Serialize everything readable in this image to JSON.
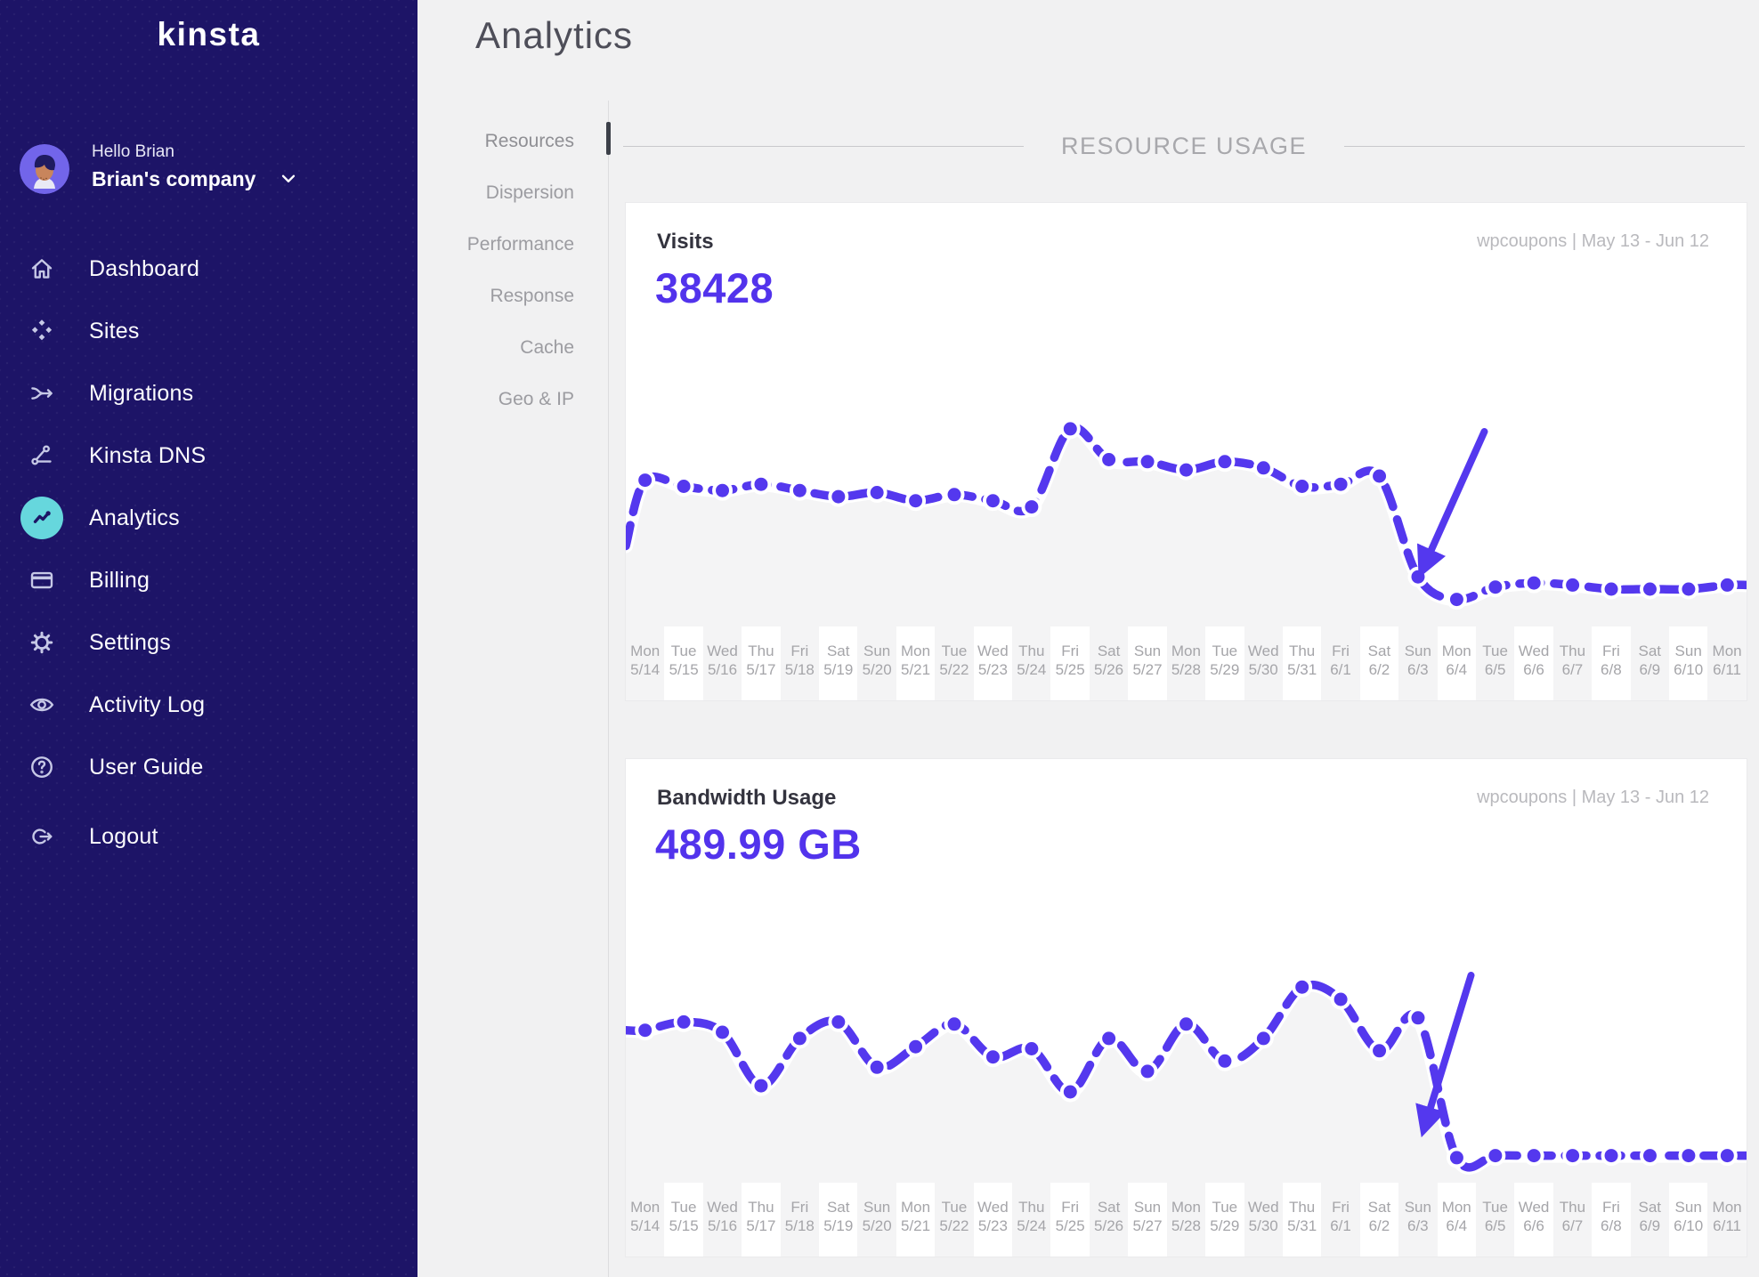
{
  "colors": {
    "sidebar_bg": "#1d1467",
    "accent_purple": "#5233ec",
    "active_teal": "#66d7dd",
    "chart_fill": "#f4f4f5",
    "muted_text": "#9c9ca1",
    "page_bg": "#f1f1f2"
  },
  "sidebar": {
    "logo": "kinsta",
    "user": {
      "greeting": "Hello Brian",
      "company": "Brian's company"
    },
    "items": [
      {
        "label": "Dashboard",
        "icon": "home-icon",
        "active": false
      },
      {
        "label": "Sites",
        "icon": "sites-icon",
        "active": false
      },
      {
        "label": "Migrations",
        "icon": "migrations-icon",
        "active": false
      },
      {
        "label": "Kinsta DNS",
        "icon": "dns-icon",
        "active": false
      },
      {
        "label": "Analytics",
        "icon": "analytics-icon",
        "active": true
      },
      {
        "label": "Billing",
        "icon": "billing-icon",
        "active": false
      },
      {
        "label": "Settings",
        "icon": "gear-icon",
        "active": false
      },
      {
        "label": "Activity Log",
        "icon": "eye-icon",
        "active": false
      },
      {
        "label": "User Guide",
        "icon": "question-icon",
        "active": false
      },
      {
        "label": "Logout",
        "icon": "logout-icon",
        "active": false
      }
    ]
  },
  "header": {
    "title": "Analytics"
  },
  "subnav": {
    "items": [
      {
        "label": "Resources",
        "active": true
      },
      {
        "label": "Dispersion",
        "active": false
      },
      {
        "label": "Performance",
        "active": false
      },
      {
        "label": "Response",
        "active": false
      },
      {
        "label": "Cache",
        "active": false
      },
      {
        "label": "Geo & IP",
        "active": false
      }
    ]
  },
  "section": {
    "title": "RESOURCE USAGE"
  },
  "chart_data": [
    {
      "type": "line",
      "title": "Visits",
      "total": "38428",
      "site": "wpcoupons",
      "date_range": "May 13 - Jun 12",
      "meta": "wpcoupons | May 13 - Jun 12",
      "x_days": [
        "Mon",
        "Tue",
        "Wed",
        "Thu",
        "Fri",
        "Sat",
        "Sun",
        "Mon",
        "Tue",
        "Wed",
        "Thu",
        "Fri",
        "Sat",
        "Sun",
        "Mon",
        "Tue",
        "Wed",
        "Thu",
        "Fri",
        "Sat",
        "Sun",
        "Mon",
        "Tue",
        "Wed",
        "Thu",
        "Fri",
        "Sat",
        "Sun",
        "Mon"
      ],
      "x_dates": [
        "5/14",
        "5/15",
        "5/16",
        "5/17",
        "5/18",
        "5/19",
        "5/20",
        "5/21",
        "5/22",
        "5/23",
        "5/24",
        "5/25",
        "5/26",
        "5/27",
        "5/28",
        "5/29",
        "5/30",
        "5/31",
        "6/1",
        "6/2",
        "6/3",
        "6/4",
        "6/5",
        "6/6",
        "6/7",
        "6/8",
        "6/9",
        "6/10",
        "6/11"
      ],
      "value_scale": "relative level 0-100 (no y-axis shown in UI)",
      "values": [
        69,
        66,
        64,
        67,
        64,
        61,
        63,
        59,
        62,
        59,
        56,
        94,
        79,
        78,
        74,
        78,
        75,
        66,
        67,
        71,
        22,
        11,
        17,
        19,
        18,
        16,
        16,
        16,
        18
      ],
      "edge_start_level": 37,
      "ylim": [
        0,
        100
      ],
      "grid": false,
      "legend": false,
      "annotation": {
        "kind": "arrow",
        "points_at": "drop between 6/3 and 6/4",
        "from_xy": [
          966,
          66
        ],
        "to_xy": [
          896,
          222
        ]
      }
    },
    {
      "type": "line",
      "title": "Bandwidth Usage",
      "total": "489.99 GB",
      "site": "wpcoupons",
      "date_range": "May 13 - Jun 12",
      "meta": "wpcoupons | May 13 - Jun 12",
      "x_days": [
        "Mon",
        "Tue",
        "Wed",
        "Thu",
        "Fri",
        "Sat",
        "Sun",
        "Mon",
        "Tue",
        "Wed",
        "Thu",
        "Fri",
        "Sat",
        "Sun",
        "Mon",
        "Tue",
        "Wed",
        "Thu",
        "Fri",
        "Sat",
        "Sun",
        "Mon",
        "Tue",
        "Wed",
        "Thu",
        "Fri",
        "Sat",
        "Sun",
        "Mon"
      ],
      "x_dates": [
        "5/14",
        "5/15",
        "5/16",
        "5/17",
        "5/18",
        "5/19",
        "5/20",
        "5/21",
        "5/22",
        "5/23",
        "5/24",
        "5/25",
        "5/26",
        "5/27",
        "5/28",
        "5/29",
        "5/30",
        "5/31",
        "6/1",
        "6/2",
        "6/3",
        "6/4",
        "6/5",
        "6/6",
        "6/7",
        "6/8",
        "6/9",
        "6/10",
        "6/11"
      ],
      "value_scale": "relative level 0-100 (no y-axis shown in UI)",
      "values": [
        72,
        76,
        71,
        45,
        68,
        76,
        54,
        64,
        75,
        59,
        63,
        42,
        68,
        52,
        75,
        57,
        68,
        93,
        87,
        62,
        78,
        10,
        11,
        11,
        11,
        11,
        11,
        11,
        11
      ],
      "edge_start_level": 72,
      "ylim": [
        0,
        100
      ],
      "grid": false,
      "legend": false,
      "annotation": {
        "kind": "arrow",
        "points_at": "drop between 6/3 and 6/4",
        "from_xy": [
          951,
          52
        ],
        "to_xy": [
          898,
          225
        ]
      }
    }
  ]
}
